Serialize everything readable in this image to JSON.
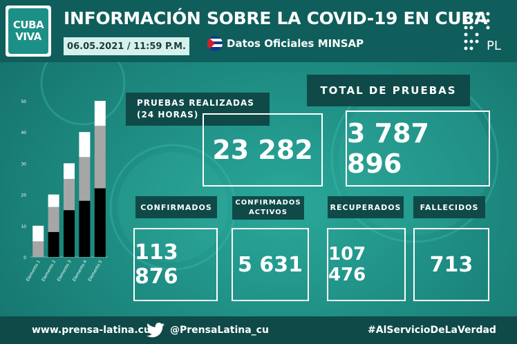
{
  "header": {
    "logo_line1": "CUBA",
    "logo_line2": "VIVA",
    "title": "INFORMACIÓN SOBRE LA COVID-19 EN CUBA",
    "date": "06.05.2021 / 11:59 P.M.",
    "source": "Datos Oficiales MINSAP",
    "pl_mark": "PL"
  },
  "stats": {
    "pruebas_label": "PRUEBAS REALIZADAS\n(24 HORAS)",
    "pruebas_value": "23 282",
    "total_label": "TOTAL DE PRUEBAS",
    "total_value": "3 787 896",
    "confirmados_label": "CONFIRMADOS",
    "confirmados_value": "113 876",
    "activos_label": "CONFIRMADOS\nACTIVOS",
    "activos_value": "5 631",
    "recuperados_label": "RECUPERADOS",
    "recuperados_value": "107 476",
    "fallecidos_label": "FALLECIDOS",
    "fallecidos_value": "713"
  },
  "chart_data": {
    "type": "bar",
    "stacked": true,
    "categories": [
      "Elemento 1",
      "Elemento 2",
      "Elemento 3",
      "Elemento 4",
      "Elemento 5"
    ],
    "series": [
      {
        "values": [
          0,
          8,
          15,
          18,
          22
        ],
        "color": "#000000"
      },
      {
        "values": [
          5,
          8,
          10,
          14,
          20
        ],
        "color": "#a6a6a6"
      },
      {
        "values": [
          5,
          4,
          5,
          8,
          8
        ],
        "color": "#ffffff"
      }
    ],
    "yticks": [
      "0",
      "10",
      "20",
      "30",
      "40",
      "50"
    ],
    "ylim": [
      0,
      50
    ],
    "grid": false
  },
  "footer": {
    "web": "www.prensa-latina.cu",
    "twitter": "@PrensaLatina_cu",
    "hashtag": "#AlServicioDeLaVerdad"
  }
}
